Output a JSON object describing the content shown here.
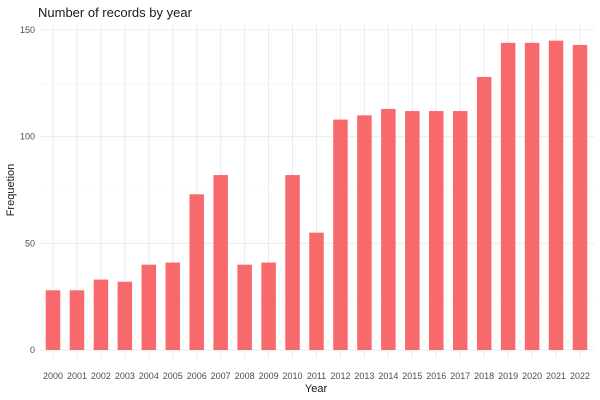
{
  "chart_data": {
    "type": "bar",
    "title": "Number of records by year",
    "xlabel": "Year",
    "ylabel": "Frequetion",
    "categories": [
      "2000",
      "2001",
      "2002",
      "2003",
      "2004",
      "2005",
      "2006",
      "2007",
      "2008",
      "2009",
      "2010",
      "2011",
      "2012",
      "2013",
      "2014",
      "2015",
      "2016",
      "2017",
      "2018",
      "2019",
      "2020",
      "2021",
      "2022"
    ],
    "values": [
      28,
      28,
      33,
      32,
      40,
      41,
      73,
      82,
      40,
      41,
      82,
      55,
      108,
      110,
      113,
      112,
      112,
      112,
      128,
      144,
      144,
      145,
      143
    ],
    "ylim": [
      0,
      150
    ],
    "yticks": [
      0,
      50,
      100,
      150
    ],
    "grid": true,
    "bar_color": "#f8696b"
  }
}
